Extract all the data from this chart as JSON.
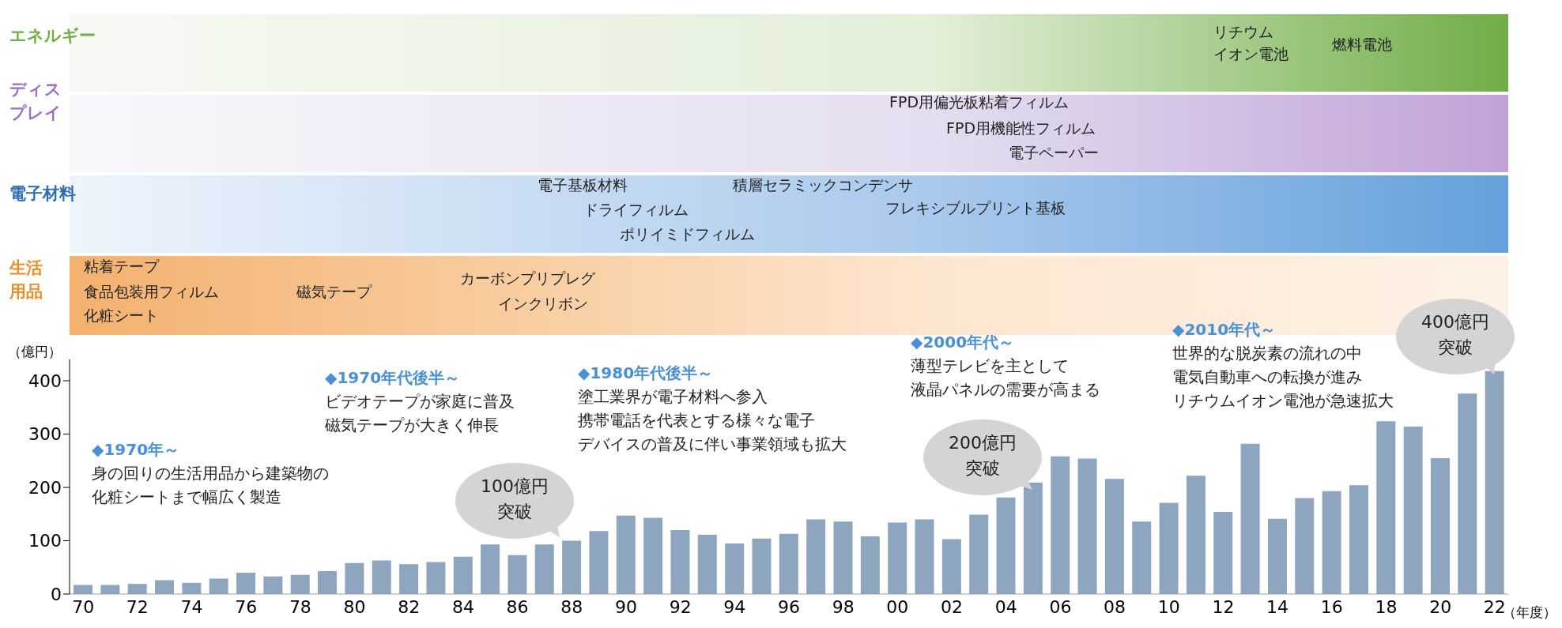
{
  "chart_data": {
    "type": "bar",
    "categories": [
      "70",
      null,
      "72",
      null,
      "74",
      null,
      "76",
      null,
      "78",
      null,
      "80",
      null,
      "82",
      null,
      "84",
      null,
      "86",
      null,
      "88",
      null,
      "90",
      null,
      "92",
      null,
      "94",
      null,
      "96",
      null,
      "98",
      null,
      "00",
      null,
      "02",
      null,
      "04",
      null,
      "06",
      null,
      "08",
      null,
      "10",
      null,
      "12",
      null,
      "14",
      null,
      "16",
      null,
      "18",
      null,
      "20",
      null,
      "22"
    ],
    "values": [
      17,
      17,
      19,
      26,
      21,
      29,
      40,
      33,
      36,
      43,
      58,
      63,
      56,
      60,
      70,
      93,
      73,
      93,
      100,
      118,
      147,
      143,
      120,
      111,
      95,
      104,
      113,
      140,
      136,
      108,
      134,
      140,
      103,
      149,
      181,
      209,
      258,
      254,
      216,
      136,
      171,
      222,
      154,
      282,
      141,
      180,
      193,
      204,
      324,
      314,
      255,
      376,
      418
    ],
    "color": "#8ea5c0",
    "ylim": [
      0,
      440
    ],
    "yticks": [
      0,
      100,
      200,
      300,
      400
    ],
    "ylabel": "（億円）",
    "xlabel": "（年度）",
    "annotations": [
      "エネルギー",
      "リチウムイオン電池",
      "燃料電池",
      "ディスプレイ",
      "FPD用偏光板粘着フィルム",
      "FPD用機能性フィルム",
      "電子ペーパー",
      "電子材料",
      "電子基板材料",
      "積層セラミックコンデンサ",
      "ドライフィルム",
      "フレキシブルプリント基板",
      "ポリイミドフィルム",
      "生活用品",
      "粘着テープ",
      "食品包装用フィルム",
      "化粧シート",
      "磁気テープ",
      "カーボンプリプレグ",
      "インクリボン",
      "◆1970年～",
      "身の回りの生活用品から建築物の化粧シートまで幅広く製造",
      "◆1970年代後半～",
      "ビデオテープが家庭に普及磁気テープが大きく伸長",
      "◆1980年代後半～",
      "塗工業界が電子材料へ参入携帯電話を代表とする様々な電子デバイスの普及に伴い事業領域も拡大",
      "◆2000年代～",
      "薄型テレビを主として液晶パネルの需要が高まる",
      "◆2010年代～",
      "世界的な脱炭素の流れの中電気自動車への転換が進みリチウムイオン電池が急速拡大",
      "100億円突破",
      "200億円突破",
      "400億円突破"
    ]
  }
}
